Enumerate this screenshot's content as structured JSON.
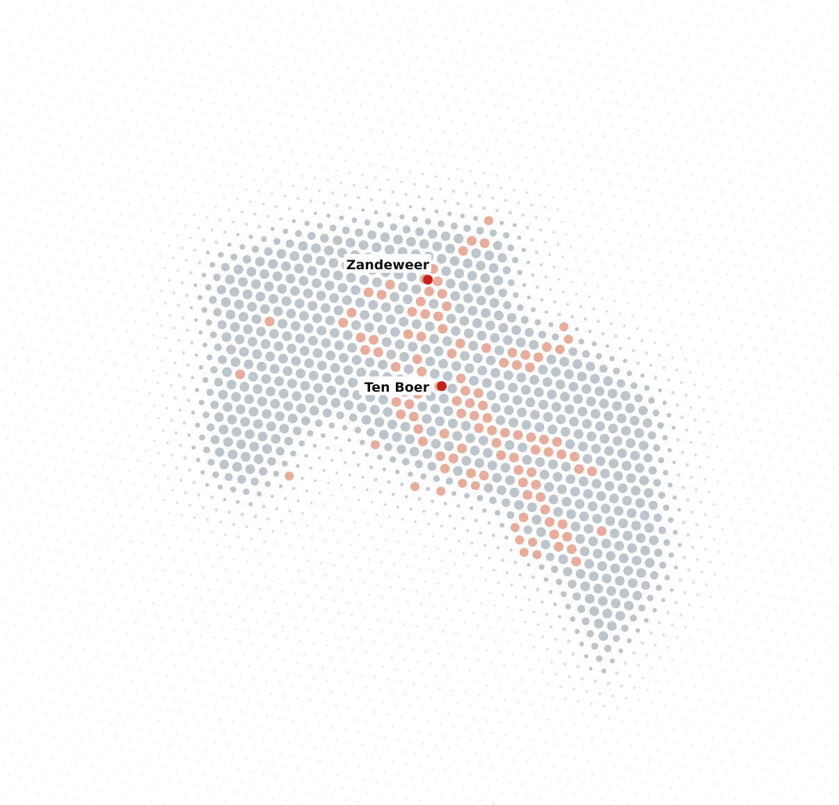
{
  "map": {
    "colors": {
      "background": "#ffffff",
      "dot_inside": "#bcc4cc",
      "dot_outside": "#c3c9cf",
      "dot_highlight": "#e9ac9b",
      "marker": "#c8201a",
      "label_text": "#111111"
    },
    "places": [
      {
        "name": "Zandeweer",
        "marker": "red-dot"
      },
      {
        "name": "Ten Boer",
        "marker": "red-dot"
      }
    ]
  }
}
